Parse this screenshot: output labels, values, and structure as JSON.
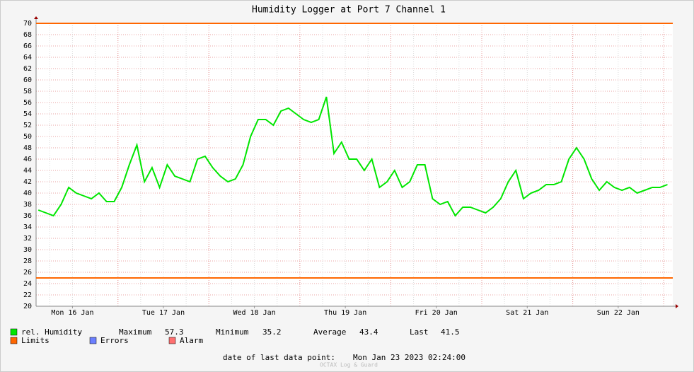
{
  "chart_data": {
    "type": "line",
    "title": "Humidity Logger at Port 7 Channel 1",
    "ylim": [
      20,
      70
    ],
    "yticks": [
      20,
      22,
      24,
      26,
      28,
      30,
      32,
      34,
      36,
      38,
      40,
      42,
      44,
      46,
      48,
      50,
      52,
      54,
      56,
      58,
      60,
      62,
      64,
      66,
      68,
      70
    ],
    "xlim": [
      2.4,
      170.4
    ],
    "xticks": [
      {
        "value": 12,
        "label": "Mon 16 Jan"
      },
      {
        "value": 36,
        "label": "Tue 17 Jan"
      },
      {
        "value": 60,
        "label": "Wed 18 Jan"
      },
      {
        "value": 84,
        "label": "Thu 19 Jan"
      },
      {
        "value": 108,
        "label": "Fri 20 Jan"
      },
      {
        "value": 132,
        "label": "Sat 21 Jan"
      },
      {
        "value": 156,
        "label": "Sun 22 Jan"
      }
    ],
    "grid": true,
    "x": [
      3,
      5,
      7,
      9,
      11,
      13,
      15,
      17,
      19,
      21,
      23,
      25,
      27,
      29,
      31,
      33,
      35,
      37,
      39,
      41,
      43,
      45,
      47,
      49,
      51,
      53,
      55,
      57,
      59,
      61,
      63,
      65,
      67,
      69,
      71,
      73,
      75,
      77,
      79,
      81,
      83,
      85,
      87,
      89,
      91,
      93,
      95,
      97,
      99,
      101,
      103,
      105,
      107,
      109,
      111,
      113,
      115,
      117,
      119,
      121,
      123,
      125,
      127,
      129,
      131,
      133,
      135,
      137,
      139,
      141,
      143,
      145,
      147,
      149,
      151,
      153,
      155,
      157,
      159,
      161,
      163,
      165,
      167,
      169
    ],
    "series": [
      {
        "name": "rel. Humidity",
        "color": "#00e600",
        "values": [
          37,
          36.5,
          36,
          38,
          41,
          40,
          39.5,
          39,
          40,
          38.5,
          38.5,
          41,
          45,
          48.5,
          42,
          44.5,
          41,
          45,
          43,
          42.5,
          42,
          46,
          46.5,
          44.5,
          43,
          42,
          42.5,
          45,
          50,
          53,
          53,
          52,
          54.5,
          55,
          54,
          53,
          52.5,
          53,
          57,
          47,
          49,
          46,
          46,
          44,
          46,
          41,
          42,
          44,
          41,
          42,
          45,
          45,
          39,
          38,
          38.5,
          36,
          37.5,
          37.5,
          37,
          36.5,
          37.5,
          39,
          42,
          44,
          39,
          40,
          40.5,
          41.5,
          41.5,
          42,
          46,
          48,
          46,
          42.5,
          40.5,
          42,
          41,
          40.5,
          41,
          40,
          40.5,
          41,
          41,
          41.5
        ]
      }
    ],
    "limits": {
      "name": "Limits",
      "color": "#ff6600",
      "values": [
        70,
        25
      ]
    },
    "other_legend": [
      {
        "name": "Errors",
        "color": "#6b7fff"
      },
      {
        "name": "Alarm",
        "color": "#ff7070"
      }
    ],
    "stats": [
      {
        "label": "Maximum",
        "value": 57.3
      },
      {
        "label": "Minimum",
        "value": 35.2
      },
      {
        "label": "Average",
        "value": 43.4
      },
      {
        "label": "Last",
        "value": 41.5
      }
    ],
    "footer_label": "date of last data point:",
    "footer_value": "Mon Jan 23 2023 02:24:00",
    "watermark": "OCTAX Log & Guard"
  }
}
